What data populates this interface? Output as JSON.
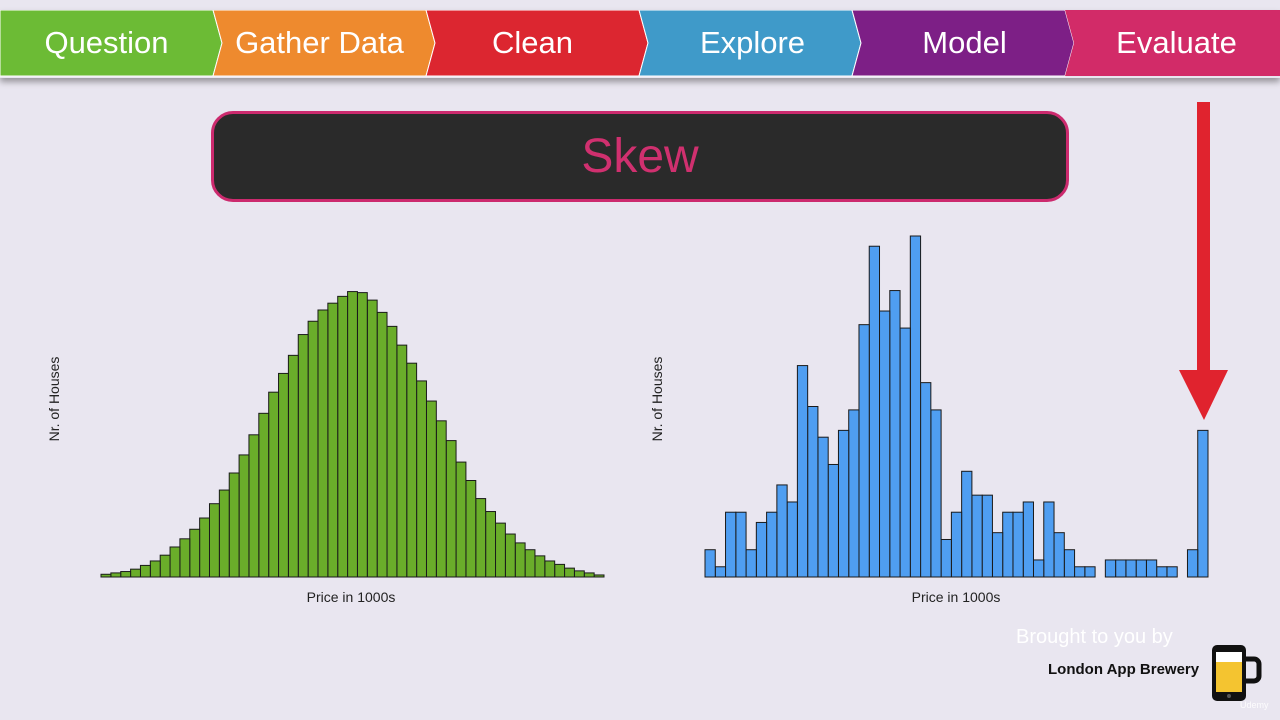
{
  "steps": [
    {
      "label": "Question",
      "color": "#6cbb35"
    },
    {
      "label": "Gather Data",
      "color": "#ee8a2e"
    },
    {
      "label": "Clean",
      "color": "#dc2630"
    },
    {
      "label": "Explore",
      "color": "#3f9ac9"
    },
    {
      "label": "Model",
      "color": "#7d1f86"
    },
    {
      "label": "Evaluate",
      "color": "#d22b68"
    }
  ],
  "title": "Skew",
  "credit": {
    "line": "Brought to you by",
    "brand": "London App Brewery",
    "watermark": "Udemy"
  },
  "arrow_color": "#e0232e",
  "chart_data": [
    {
      "type": "bar",
      "xlabel": "Price in 1000s",
      "ylabel": "Nr. of Houses",
      "color": "#6aad2a",
      "ylim": [
        0,
        100
      ],
      "values": [
        0.8,
        1.2,
        1.6,
        2.3,
        3.4,
        4.7,
        6.4,
        8.8,
        11.2,
        14.0,
        17.3,
        21.5,
        25.5,
        30.5,
        35.8,
        41.7,
        48.0,
        54.2,
        59.7,
        65.0,
        71.1,
        75.0,
        78.3,
        80.3,
        82.3,
        83.7,
        83.4,
        81.2,
        77.6,
        73.5,
        68.0,
        62.7,
        57.5,
        51.6,
        45.8,
        40.0,
        33.7,
        28.3,
        23.0,
        19.2,
        15.8,
        12.6,
        10.0,
        8.0,
        6.2,
        4.7,
        3.7,
        2.6,
        1.8,
        1.2,
        0.6
      ]
    },
    {
      "type": "bar",
      "xlabel": "Price in 1000s",
      "ylabel": "Nr. of Houses",
      "color": "#4f9ef1",
      "ylim": [
        0,
        100
      ],
      "values": [
        8,
        3,
        19,
        19,
        8,
        16,
        19,
        27,
        22,
        62,
        50,
        41,
        33,
        43,
        49,
        74,
        97,
        78,
        84,
        73,
        100,
        57,
        49,
        11,
        19,
        31,
        24,
        24,
        13,
        19,
        19,
        22,
        5,
        22,
        13,
        8,
        3,
        3,
        0,
        5,
        5,
        5,
        5,
        5,
        3,
        3,
        0,
        8,
        43
      ]
    }
  ]
}
